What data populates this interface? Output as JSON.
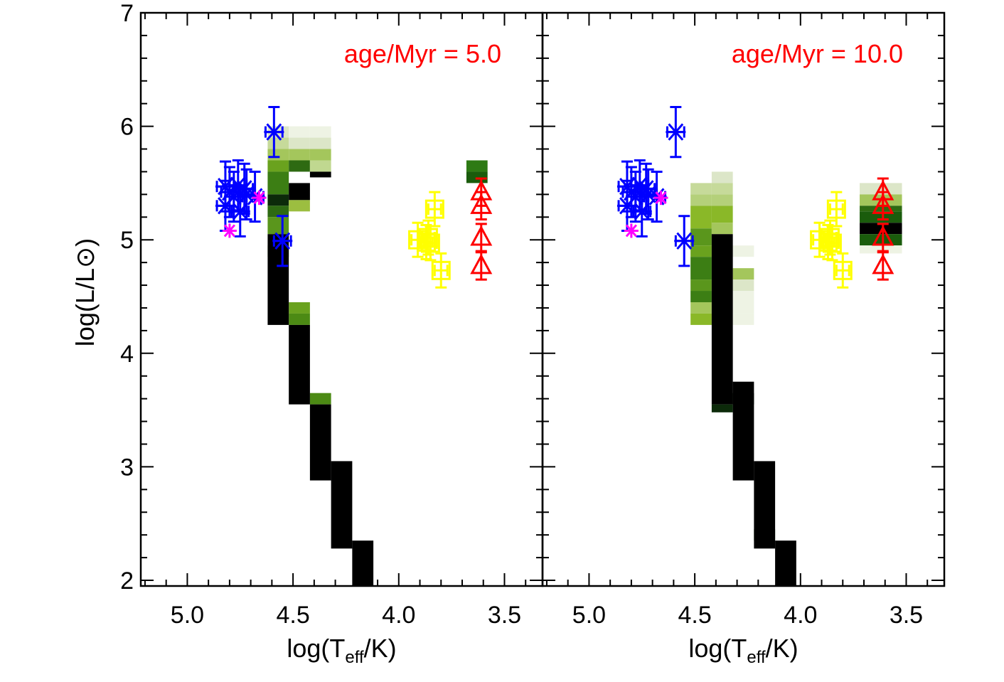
{
  "chart_data": [
    {
      "type": "scatter",
      "title": "",
      "annotation": "age/Myr = 5.0",
      "xlabel": {
        "pre": "log(T",
        "sub": "eff",
        "post": "/K)"
      },
      "ylabel": "log(L/L⊙)",
      "xlim": [
        5.22,
        3.32
      ],
      "ylim": [
        1.95,
        7.0
      ],
      "xticks": [
        "5.0",
        "4.5",
        "4.0",
        "3.5"
      ],
      "yticks": [
        "2",
        "3",
        "4",
        "5",
        "6",
        "7"
      ],
      "grid": false,
      "heatmap_cells": [
        {
          "x0": 4.62,
          "x1": 4.52,
          "y0": 5.9,
          "y1": 6.0,
          "color": "#dce6c8"
        },
        {
          "x0": 4.62,
          "x1": 4.52,
          "y0": 5.8,
          "y1": 5.9,
          "color": "#c6da9a"
        },
        {
          "x0": 4.62,
          "x1": 4.52,
          "y0": 5.7,
          "y1": 5.8,
          "color": "#a4c65c"
        },
        {
          "x0": 4.62,
          "x1": 4.52,
          "y0": 5.6,
          "y1": 5.7,
          "color": "#6aa21e"
        },
        {
          "x0": 4.62,
          "x1": 4.52,
          "y0": 5.4,
          "y1": 5.6,
          "color": "#3c7e14"
        },
        {
          "x0": 4.62,
          "x1": 4.52,
          "y0": 5.3,
          "y1": 5.4,
          "color": "#0c2a0a"
        },
        {
          "x0": 4.62,
          "x1": 4.52,
          "y0": 5.2,
          "y1": 5.3,
          "color": "#2e6a12"
        },
        {
          "x0": 4.62,
          "x1": 4.52,
          "y0": 5.05,
          "y1": 5.2,
          "color": "#5a961c"
        },
        {
          "x0": 4.62,
          "x1": 4.52,
          "y0": 4.85,
          "y1": 4.95,
          "color": "#9cbe40"
        },
        {
          "x0": 4.52,
          "x1": 4.42,
          "y0": 5.9,
          "y1": 6.0,
          "color": "#eef3e4"
        },
        {
          "x0": 4.52,
          "x1": 4.42,
          "y0": 5.8,
          "y1": 5.9,
          "color": "#dce6c8"
        },
        {
          "x0": 4.52,
          "x1": 4.42,
          "y0": 5.7,
          "y1": 5.8,
          "color": "#a4c65c"
        },
        {
          "x0": 4.52,
          "x1": 4.42,
          "y0": 5.6,
          "y1": 5.7,
          "color": "#2e6a12"
        },
        {
          "x0": 4.52,
          "x1": 4.42,
          "y0": 5.35,
          "y1": 5.5,
          "color": "#000000"
        },
        {
          "x0": 4.52,
          "x1": 4.42,
          "y0": 5.25,
          "y1": 5.35,
          "color": "#9cbe40"
        },
        {
          "x0": 4.52,
          "x1": 4.42,
          "y0": 4.35,
          "y1": 4.45,
          "color": "#6aa21e"
        },
        {
          "x0": 4.52,
          "x1": 4.42,
          "y0": 4.25,
          "y1": 4.35,
          "color": "#4c8a14"
        },
        {
          "x0": 4.42,
          "x1": 4.32,
          "y0": 5.9,
          "y1": 6.0,
          "color": "#eef3e4"
        },
        {
          "x0": 4.42,
          "x1": 4.32,
          "y0": 5.8,
          "y1": 5.9,
          "color": "#dce6c8"
        },
        {
          "x0": 4.42,
          "x1": 4.32,
          "y0": 5.7,
          "y1": 5.8,
          "color": "#a4c65c"
        },
        {
          "x0": 4.42,
          "x1": 4.32,
          "y0": 5.6,
          "y1": 5.7,
          "color": "#c0d890"
        },
        {
          "x0": 4.42,
          "x1": 4.32,
          "y0": 5.55,
          "y1": 5.6,
          "color": "#000000"
        },
        {
          "x0": 4.42,
          "x1": 4.32,
          "y0": 3.55,
          "y1": 3.65,
          "color": "#4c8a14"
        },
        {
          "x0": 3.68,
          "x1": 3.58,
          "y0": 5.6,
          "y1": 5.7,
          "color": "#2e7a14"
        },
        {
          "x0": 3.68,
          "x1": 3.58,
          "y0": 5.5,
          "y1": 5.6,
          "color": "#1a5c0c"
        }
      ],
      "heatmap_track": [
        {
          "x0": 4.62,
          "x1": 4.52,
          "y0": 4.25,
          "y1": 5.05
        },
        {
          "x0": 4.52,
          "x1": 4.42,
          "y0": 3.55,
          "y1": 4.25
        },
        {
          "x0": 4.42,
          "x1": 4.32,
          "y0": 2.88,
          "y1": 3.55
        },
        {
          "x0": 4.32,
          "x1": 4.22,
          "y0": 2.28,
          "y1": 3.05
        },
        {
          "x0": 4.22,
          "x1": 4.12,
          "y0": 1.95,
          "y1": 2.35
        }
      ],
      "series": [
        {
          "marker": "asterisk",
          "color": "#0000ff",
          "points": [
            {
              "x": 4.82,
              "y": 5.47,
              "xerr": 0.04,
              "yerr": 0.22
            },
            {
              "x": 4.82,
              "y": 5.3,
              "xerr": 0.04,
              "yerr": 0.22
            },
            {
              "x": 4.8,
              "y": 5.42,
              "xerr": 0.04,
              "yerr": 0.22
            },
            {
              "x": 4.78,
              "y": 5.38,
              "xerr": 0.04,
              "yerr": 0.22
            },
            {
              "x": 4.76,
              "y": 5.48,
              "xerr": 0.04,
              "yerr": 0.22
            },
            {
              "x": 4.75,
              "y": 5.25,
              "xerr": 0.04,
              "yerr": 0.22
            },
            {
              "x": 4.73,
              "y": 5.45,
              "xerr": 0.04,
              "yerr": 0.22
            },
            {
              "x": 4.72,
              "y": 5.4,
              "xerr": 0.04,
              "yerr": 0.22
            },
            {
              "x": 4.68,
              "y": 5.38,
              "xerr": 0.04,
              "yerr": 0.22
            },
            {
              "x": 4.59,
              "y": 5.95,
              "xerr": 0.04,
              "yerr": 0.22
            },
            {
              "x": 4.55,
              "y": 4.99,
              "xerr": 0.04,
              "yerr": 0.22
            }
          ]
        },
        {
          "marker": "asterisk",
          "color": "#ff00ff",
          "points": [
            {
              "x": 4.8,
              "y": 5.08,
              "xerr": 0,
              "yerr": 0
            },
            {
              "x": 4.66,
              "y": 5.37,
              "xerr": 0,
              "yerr": 0
            }
          ]
        },
        {
          "marker": "square",
          "color": "#ffff00",
          "points": [
            {
              "x": 3.91,
              "y": 5.0,
              "xerr": 0.03,
              "yerr": 0.15
            },
            {
              "x": 3.87,
              "y": 4.98,
              "xerr": 0.03,
              "yerr": 0.15
            },
            {
              "x": 3.86,
              "y": 5.02,
              "xerr": 0.03,
              "yerr": 0.15
            },
            {
              "x": 3.85,
              "y": 4.97,
              "xerr": 0.03,
              "yerr": 0.15
            },
            {
              "x": 3.83,
              "y": 5.27,
              "xerr": 0.03,
              "yerr": 0.15
            },
            {
              "x": 3.8,
              "y": 4.73,
              "xerr": 0.03,
              "yerr": 0.15
            }
          ]
        },
        {
          "marker": "triangle",
          "color": "#ff0000",
          "points": [
            {
              "x": 3.61,
              "y": 5.42,
              "xerr": 0,
              "yerr": 0.12
            },
            {
              "x": 3.61,
              "y": 5.3,
              "xerr": 0,
              "yerr": 0.12
            },
            {
              "x": 3.61,
              "y": 5.02,
              "xerr": 0,
              "yerr": 0.12
            },
            {
              "x": 3.61,
              "y": 4.77,
              "xerr": 0,
              "yerr": 0.12
            }
          ]
        }
      ]
    },
    {
      "type": "scatter",
      "title": "",
      "annotation": "age/Myr = 10.0",
      "xlabel": {
        "pre": "log(T",
        "sub": "eff",
        "post": "/K)"
      },
      "ylabel": "",
      "xlim": [
        5.22,
        3.32
      ],
      "ylim": [
        1.95,
        7.0
      ],
      "xticks": [
        "5.0",
        "4.5",
        "4.0",
        "3.5"
      ],
      "yticks": [
        "2",
        "3",
        "4",
        "5",
        "6",
        "7"
      ],
      "grid": false,
      "heatmap_cells": [
        {
          "x0": 4.52,
          "x1": 4.42,
          "y0": 5.4,
          "y1": 5.5,
          "color": "#c6da9a"
        },
        {
          "x0": 4.52,
          "x1": 4.42,
          "y0": 5.3,
          "y1": 5.4,
          "color": "#b4d07a"
        },
        {
          "x0": 4.52,
          "x1": 4.42,
          "y0": 5.1,
          "y1": 5.3,
          "color": "#8ab828"
        },
        {
          "x0": 4.52,
          "x1": 4.42,
          "y0": 4.95,
          "y1": 5.1,
          "color": "#5a961c"
        },
        {
          "x0": 4.52,
          "x1": 4.42,
          "y0": 4.85,
          "y1": 4.95,
          "color": "#6aa21e"
        },
        {
          "x0": 4.52,
          "x1": 4.42,
          "y0": 4.65,
          "y1": 4.85,
          "color": "#3c7e14"
        },
        {
          "x0": 4.52,
          "x1": 4.42,
          "y0": 4.55,
          "y1": 4.65,
          "color": "#5a961c"
        },
        {
          "x0": 4.52,
          "x1": 4.42,
          "y0": 4.45,
          "y1": 4.55,
          "color": "#3c7e14"
        },
        {
          "x0": 4.52,
          "x1": 4.42,
          "y0": 4.35,
          "y1": 4.45,
          "color": "#a4c65c"
        },
        {
          "x0": 4.52,
          "x1": 4.42,
          "y0": 4.25,
          "y1": 4.35,
          "color": "#8ab828"
        },
        {
          "x0": 4.42,
          "x1": 4.32,
          "y0": 5.5,
          "y1": 5.6,
          "color": "#dce6c8"
        },
        {
          "x0": 4.42,
          "x1": 4.32,
          "y0": 5.4,
          "y1": 5.5,
          "color": "#c6da9a"
        },
        {
          "x0": 4.42,
          "x1": 4.32,
          "y0": 5.3,
          "y1": 5.4,
          "color": "#b4d07a"
        },
        {
          "x0": 4.42,
          "x1": 4.32,
          "y0": 5.15,
          "y1": 5.3,
          "color": "#8ab828"
        },
        {
          "x0": 4.42,
          "x1": 4.32,
          "y0": 5.05,
          "y1": 5.15,
          "color": "#a4c65c"
        },
        {
          "x0": 4.42,
          "x1": 4.32,
          "y0": 3.48,
          "y1": 3.55,
          "color": "#0c2a0a"
        },
        {
          "x0": 4.32,
          "x1": 4.22,
          "y0": 4.85,
          "y1": 4.95,
          "color": "#eef3e4"
        },
        {
          "x0": 4.32,
          "x1": 4.22,
          "y0": 4.65,
          "y1": 4.75,
          "color": "#a4c65c"
        },
        {
          "x0": 4.32,
          "x1": 4.22,
          "y0": 4.55,
          "y1": 4.65,
          "color": "#dce6c8"
        },
        {
          "x0": 4.32,
          "x1": 4.22,
          "y0": 4.45,
          "y1": 4.55,
          "color": "#eef3e4"
        },
        {
          "x0": 4.32,
          "x1": 4.22,
          "y0": 4.35,
          "y1": 4.45,
          "color": "#eef3e4"
        },
        {
          "x0": 4.32,
          "x1": 4.22,
          "y0": 4.25,
          "y1": 4.35,
          "color": "#eef3e4"
        },
        {
          "x0": 4.32,
          "x1": 4.22,
          "y0": 3.55,
          "y1": 3.65,
          "color": "#0c2a0a"
        },
        {
          "x0": 4.22,
          "x1": 4.12,
          "y0": 2.35,
          "y1": 2.45,
          "color": "#1a5c0c"
        },
        {
          "x0": 3.72,
          "x1": 3.52,
          "y0": 5.4,
          "y1": 5.5,
          "color": "#dce6c8"
        },
        {
          "x0": 3.72,
          "x1": 3.52,
          "y0": 5.3,
          "y1": 5.4,
          "color": "#a4c65c"
        },
        {
          "x0": 3.72,
          "x1": 3.52,
          "y0": 5.25,
          "y1": 5.3,
          "color": "#2e6a12"
        },
        {
          "x0": 3.72,
          "x1": 3.52,
          "y0": 5.15,
          "y1": 5.25,
          "color": "#1a5c0c"
        },
        {
          "x0": 3.72,
          "x1": 3.52,
          "y0": 5.05,
          "y1": 5.15,
          "color": "#000000"
        },
        {
          "x0": 3.72,
          "x1": 3.52,
          "y0": 4.95,
          "y1": 5.05,
          "color": "#1a5c0c"
        },
        {
          "x0": 3.72,
          "x1": 3.52,
          "y0": 4.88,
          "y1": 4.95,
          "color": "#eef3e4"
        }
      ],
      "heatmap_track": [
        {
          "x0": 4.42,
          "x1": 4.32,
          "y0": 3.55,
          "y1": 5.05
        },
        {
          "x0": 4.32,
          "x1": 4.22,
          "y0": 2.88,
          "y1": 3.75
        },
        {
          "x0": 4.22,
          "x1": 4.12,
          "y0": 2.28,
          "y1": 3.05
        },
        {
          "x0": 4.12,
          "x1": 4.02,
          "y0": 1.95,
          "y1": 2.35
        }
      ],
      "series": [
        {
          "marker": "asterisk",
          "color": "#0000ff",
          "points": [
            {
              "x": 4.82,
              "y": 5.47,
              "xerr": 0.04,
              "yerr": 0.22
            },
            {
              "x": 4.82,
              "y": 5.3,
              "xerr": 0.04,
              "yerr": 0.22
            },
            {
              "x": 4.8,
              "y": 5.42,
              "xerr": 0.04,
              "yerr": 0.22
            },
            {
              "x": 4.78,
              "y": 5.38,
              "xerr": 0.04,
              "yerr": 0.22
            },
            {
              "x": 4.76,
              "y": 5.48,
              "xerr": 0.04,
              "yerr": 0.22
            },
            {
              "x": 4.75,
              "y": 5.25,
              "xerr": 0.04,
              "yerr": 0.22
            },
            {
              "x": 4.73,
              "y": 5.45,
              "xerr": 0.04,
              "yerr": 0.22
            },
            {
              "x": 4.72,
              "y": 5.4,
              "xerr": 0.04,
              "yerr": 0.22
            },
            {
              "x": 4.68,
              "y": 5.38,
              "xerr": 0.04,
              "yerr": 0.22
            },
            {
              "x": 4.59,
              "y": 5.95,
              "xerr": 0.04,
              "yerr": 0.22
            },
            {
              "x": 4.55,
              "y": 4.99,
              "xerr": 0.04,
              "yerr": 0.22
            }
          ]
        },
        {
          "marker": "asterisk",
          "color": "#ff00ff",
          "points": [
            {
              "x": 4.8,
              "y": 5.08,
              "xerr": 0,
              "yerr": 0
            },
            {
              "x": 4.66,
              "y": 5.37,
              "xerr": 0,
              "yerr": 0
            }
          ]
        },
        {
          "marker": "square",
          "color": "#ffff00",
          "points": [
            {
              "x": 3.91,
              "y": 5.0,
              "xerr": 0.03,
              "yerr": 0.15
            },
            {
              "x": 3.87,
              "y": 4.98,
              "xerr": 0.03,
              "yerr": 0.15
            },
            {
              "x": 3.86,
              "y": 5.02,
              "xerr": 0.03,
              "yerr": 0.15
            },
            {
              "x": 3.85,
              "y": 4.97,
              "xerr": 0.03,
              "yerr": 0.15
            },
            {
              "x": 3.83,
              "y": 5.27,
              "xerr": 0.03,
              "yerr": 0.15
            },
            {
              "x": 3.8,
              "y": 4.73,
              "xerr": 0.03,
              "yerr": 0.15
            }
          ]
        },
        {
          "marker": "triangle",
          "color": "#ff0000",
          "points": [
            {
              "x": 3.61,
              "y": 5.42,
              "xerr": 0,
              "yerr": 0.12
            },
            {
              "x": 3.61,
              "y": 5.3,
              "xerr": 0,
              "yerr": 0.12
            },
            {
              "x": 3.61,
              "y": 5.02,
              "xerr": 0,
              "yerr": 0.12
            },
            {
              "x": 3.61,
              "y": 4.77,
              "xerr": 0,
              "yerr": 0.12
            }
          ]
        }
      ]
    }
  ]
}
